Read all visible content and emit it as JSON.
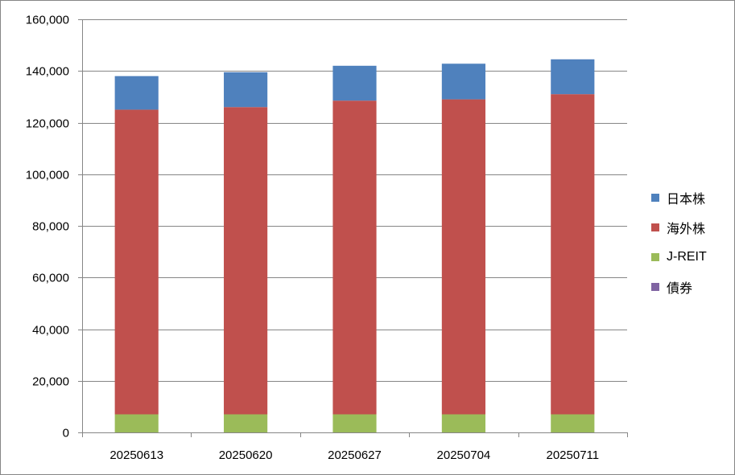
{
  "chart_data": {
    "type": "bar",
    "stacked": true,
    "categories": [
      "20250613",
      "20250620",
      "20250627",
      "20250704",
      "20250711"
    ],
    "series": [
      {
        "name": "債券",
        "color": "#8064A2",
        "values": [
          0,
          0,
          0,
          0,
          0
        ]
      },
      {
        "name": "J-REIT",
        "color": "#9BBB59",
        "values": [
          7000,
          7000,
          7000,
          7000,
          7000
        ]
      },
      {
        "name": "海外株",
        "color": "#C0504D",
        "values": [
          118000,
          119000,
          121500,
          122000,
          124000
        ]
      },
      {
        "name": "日本株",
        "color": "#4F81BD",
        "values": [
          13000,
          13500,
          13500,
          13800,
          13500
        ]
      }
    ],
    "ylim": [
      0,
      160000
    ],
    "yticks": [
      "0",
      "20,000",
      "40,000",
      "60,000",
      "80,000",
      "100,000",
      "120,000",
      "140,000",
      "160,000"
    ],
    "ytick_values": [
      0,
      20000,
      40000,
      60000,
      80000,
      100000,
      120000,
      140000,
      160000
    ],
    "grid": true,
    "legend_position": "right",
    "legend_order": [
      "日本株",
      "海外株",
      "J-REIT",
      "債券"
    ]
  }
}
